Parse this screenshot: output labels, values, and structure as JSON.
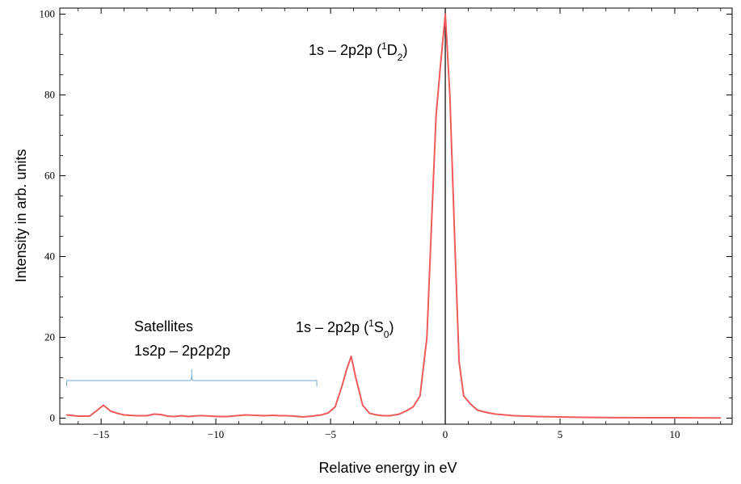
{
  "chart_data": {
    "type": "line",
    "title": "",
    "xlabel": "Relative energy in eV",
    "ylabel": "Intensity in arb. units",
    "xlim": [
      -16.8,
      12.5
    ],
    "ylim": [
      -1.5,
      101.5
    ],
    "xticks": [
      -15,
      -10,
      -5,
      0,
      5,
      10
    ],
    "yticks": [
      0,
      20,
      40,
      60,
      80,
      100
    ],
    "xtick_labels": [
      "−15",
      "−10",
      "−5",
      "0",
      "5",
      "10"
    ],
    "ytick_labels": [
      "0",
      "20",
      "40",
      "60",
      "80",
      "100"
    ],
    "grid": false,
    "vertical_line_at": 0,
    "colors": {
      "series": "#f05a5a",
      "vline": "#000000",
      "bracket": "#6fa8d0",
      "axes": "#000000"
    },
    "series": [
      {
        "x": [
          -16.5,
          -16.0,
          -15.5,
          -15.2,
          -14.9,
          -14.6,
          -14.3,
          -14.0,
          -13.5,
          -13.0,
          -12.7,
          -12.4,
          -12.1,
          -11.8,
          -11.5,
          -11.2,
          -10.8,
          -10.5,
          -10.2,
          -9.9,
          -9.5,
          -9.1,
          -8.7,
          -8.3,
          -7.9,
          -7.5,
          -7.2,
          -6.9,
          -6.6,
          -6.2,
          -5.8,
          -5.4,
          -5.1,
          -4.8,
          -4.5,
          -4.3,
          -4.1,
          -3.9,
          -3.6,
          -3.3,
          -3.0,
          -2.7,
          -2.4,
          -2.0,
          -1.7,
          -1.4,
          -1.1,
          -0.8,
          -0.6,
          -0.4,
          -0.2,
          0.0,
          0.2,
          0.4,
          0.6,
          0.8,
          1.1,
          1.4,
          1.8,
          2.2,
          2.6,
          3.0,
          3.5,
          4.0,
          5.0,
          6.0,
          7.0,
          8.0,
          9.0,
          10.0,
          11.0,
          12.0
        ],
        "values": [
          0.8,
          0.5,
          0.5,
          1.8,
          3.2,
          1.8,
          1.2,
          0.8,
          0.6,
          0.6,
          1.0,
          0.9,
          0.5,
          0.4,
          0.6,
          0.4,
          0.6,
          0.6,
          0.5,
          0.4,
          0.4,
          0.6,
          0.8,
          0.7,
          0.6,
          0.7,
          0.6,
          0.6,
          0.5,
          0.3,
          0.5,
          0.8,
          1.3,
          2.8,
          8.0,
          12.0,
          15.3,
          10.0,
          3.2,
          1.2,
          0.8,
          0.6,
          0.6,
          1.0,
          1.8,
          2.8,
          5.5,
          20.0,
          48.0,
          75.0,
          88.0,
          100.0,
          80.0,
          46.0,
          14.0,
          5.5,
          3.5,
          2.0,
          1.4,
          1.0,
          0.8,
          0.6,
          0.5,
          0.4,
          0.3,
          0.2,
          0.15,
          0.12,
          0.1,
          0.1,
          0.08,
          0.05
        ]
      }
    ],
    "annotations": {
      "d2_label": {
        "text": "1s – 2p2p (",
        "sup": "1",
        "main": "D",
        "sub": "2",
        "close": ")"
      },
      "s0_label": {
        "text": "1s – 2p2p (",
        "sup": "1",
        "main": "S",
        "sub": "0",
        "close": ")"
      },
      "satellites_line1": "Satellites",
      "satellites_line2": "1s2p – 2p2p2p",
      "satellites_bracket_range": [
        -16.5,
        -5.6
      ]
    }
  }
}
